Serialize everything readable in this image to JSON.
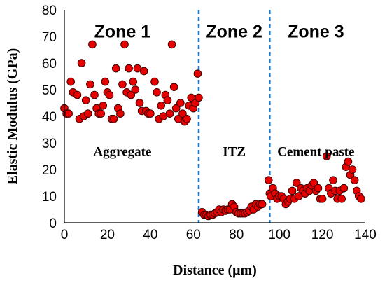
{
  "chart_data": {
    "type": "scatter",
    "xlabel": "Distance (μm)",
    "ylabel": "Elastic Modulus (GPa)",
    "xlim": [
      0,
      140
    ],
    "ylim": [
      0,
      80
    ],
    "x_ticks": [
      "0",
      "20",
      "40",
      "60",
      "80",
      "100",
      "120",
      "140"
    ],
    "y_ticks": [
      "0",
      "10",
      "20",
      "30",
      "40",
      "50",
      "60",
      "70",
      "80"
    ],
    "grid": false,
    "dividers": [
      {
        "x": 62.5,
        "style": "dashed",
        "color": "#1f78c8"
      },
      {
        "x": 95.5,
        "style": "dashed",
        "color": "#1f78c8"
      }
    ],
    "zones": [
      {
        "label": "Zone 1",
        "x": 27,
        "y": 72
      },
      {
        "label": "Zone 2",
        "x": 79,
        "y": 72
      },
      {
        "label": "Zone 3",
        "x": 117,
        "y": 72
      }
    ],
    "region_labels": [
      {
        "label": "Aggregate",
        "x": 27,
        "y": 27
      },
      {
        "label": "ITZ",
        "x": 79,
        "y": 27
      },
      {
        "label": "Cement paste",
        "x": 117,
        "y": 27
      }
    ],
    "marker_color": "#e60000",
    "points": [
      [
        0,
        43
      ],
      [
        1,
        41
      ],
      [
        2,
        41
      ],
      [
        3,
        53
      ],
      [
        4,
        49
      ],
      [
        6,
        48
      ],
      [
        7,
        39
      ],
      [
        8,
        60
      ],
      [
        9,
        40
      ],
      [
        10,
        46
      ],
      [
        11,
        41
      ],
      [
        12,
        52
      ],
      [
        13,
        67
      ],
      [
        14,
        48
      ],
      [
        15,
        43
      ],
      [
        16,
        41
      ],
      [
        17,
        41
      ],
      [
        18,
        44
      ],
      [
        19,
        53
      ],
      [
        20,
        49
      ],
      [
        21,
        48
      ],
      [
        22,
        39
      ],
      [
        23,
        39
      ],
      [
        24,
        58
      ],
      [
        25,
        43
      ],
      [
        26,
        41
      ],
      [
        27,
        52
      ],
      [
        28,
        67
      ],
      [
        29,
        49
      ],
      [
        30,
        58
      ],
      [
        31,
        48
      ],
      [
        32,
        53
      ],
      [
        33,
        50
      ],
      [
        34,
        58
      ],
      [
        35,
        45
      ],
      [
        36,
        42
      ],
      [
        37,
        57
      ],
      [
        38,
        42
      ],
      [
        39,
        41
      ],
      [
        40,
        41
      ],
      [
        42,
        53
      ],
      [
        43,
        49
      ],
      [
        44,
        39
      ],
      [
        45,
        44
      ],
      [
        46,
        40
      ],
      [
        47,
        48
      ],
      [
        48,
        46
      ],
      [
        49,
        41
      ],
      [
        50,
        67
      ],
      [
        51,
        51
      ],
      [
        52,
        43
      ],
      [
        53,
        39
      ],
      [
        54,
        45
      ],
      [
        55,
        41
      ],
      [
        56,
        38
      ],
      [
        57,
        39
      ],
      [
        58,
        44
      ],
      [
        59,
        47
      ],
      [
        60,
        43
      ],
      [
        61,
        45
      ],
      [
        62,
        56
      ],
      [
        62.5,
        47
      ],
      [
        64,
        4
      ],
      [
        65,
        3
      ],
      [
        66,
        3
      ],
      [
        67,
        2.5
      ],
      [
        68,
        3
      ],
      [
        69,
        3
      ],
      [
        70,
        3.5
      ],
      [
        71,
        4
      ],
      [
        72,
        5
      ],
      [
        73,
        4
      ],
      [
        74,
        5
      ],
      [
        75,
        4.5
      ],
      [
        76,
        5
      ],
      [
        77,
        5
      ],
      [
        78,
        7
      ],
      [
        79,
        6
      ],
      [
        80,
        4
      ],
      [
        81,
        3.5
      ],
      [
        82,
        3.5
      ],
      [
        83,
        3.5
      ],
      [
        84,
        3.5
      ],
      [
        85,
        4
      ],
      [
        86,
        4.5
      ],
      [
        87,
        6
      ],
      [
        88,
        5
      ],
      [
        89,
        7
      ],
      [
        90,
        6
      ],
      [
        91,
        7
      ],
      [
        92,
        7
      ],
      [
        95,
        16
      ],
      [
        95.5,
        11
      ],
      [
        96,
        10
      ],
      [
        97,
        13
      ],
      [
        98,
        11
      ],
      [
        99,
        9
      ],
      [
        100,
        10
      ],
      [
        101,
        10
      ],
      [
        102,
        9
      ],
      [
        103,
        7
      ],
      [
        104,
        8
      ],
      [
        105,
        9
      ],
      [
        106,
        12
      ],
      [
        107,
        9
      ],
      [
        108,
        15
      ],
      [
        109,
        10
      ],
      [
        110,
        13
      ],
      [
        111,
        12
      ],
      [
        112,
        11
      ],
      [
        113,
        13
      ],
      [
        114,
        12
      ],
      [
        115,
        14
      ],
      [
        116,
        15
      ],
      [
        117,
        12
      ],
      [
        118,
        13
      ],
      [
        119,
        9
      ],
      [
        120,
        9
      ],
      [
        122,
        25
      ],
      [
        123,
        13
      ],
      [
        124,
        11
      ],
      [
        125,
        16
      ],
      [
        126,
        12
      ],
      [
        127,
        9
      ],
      [
        128,
        12
      ],
      [
        129,
        9
      ],
      [
        130,
        13
      ],
      [
        131,
        21
      ],
      [
        132,
        23
      ],
      [
        133,
        18
      ],
      [
        134,
        20
      ],
      [
        135,
        16
      ],
      [
        136,
        12
      ],
      [
        137,
        10
      ],
      [
        138,
        9
      ]
    ]
  }
}
